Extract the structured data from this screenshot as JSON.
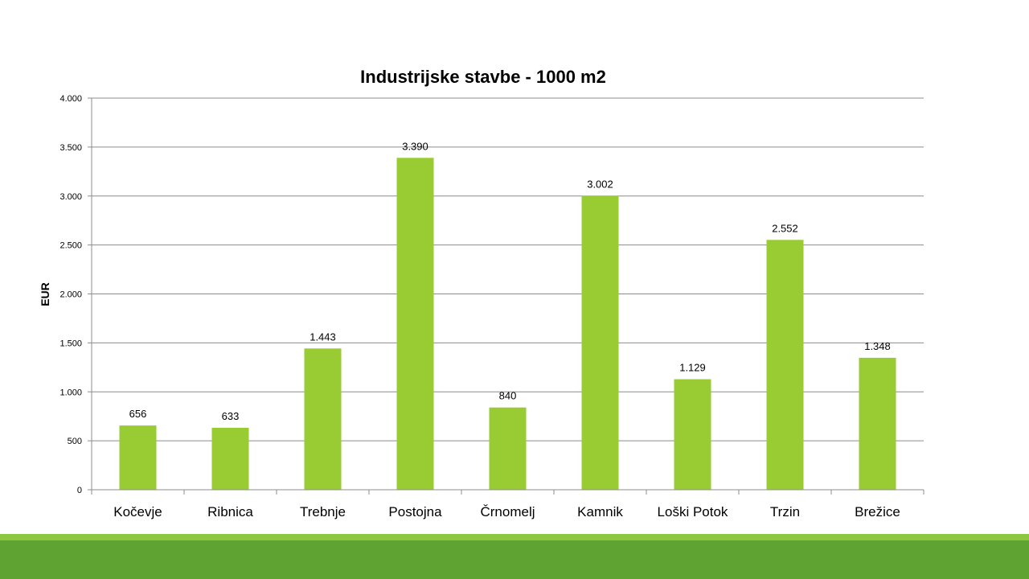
{
  "chart_data": {
    "type": "bar",
    "title": "Industrijske stavbe - 1000 m2",
    "xlabel": "",
    "ylabel": "EUR",
    "categories": [
      "Kočevje",
      "Ribnica",
      "Trebnje",
      "Postojna",
      "Črnomelj",
      "Kamnik",
      "Loški Potok",
      "Trzin",
      "Brežice"
    ],
    "values": [
      656,
      633,
      1443,
      3390,
      840,
      3002,
      1129,
      2552,
      1348
    ],
    "value_labels": [
      "656",
      "633",
      "1.443",
      "3.390",
      "840",
      "3.002",
      "1.129",
      "2.552",
      "1.348"
    ],
    "ylim": [
      0,
      4000
    ],
    "yticks": [
      0,
      500,
      1000,
      1500,
      2000,
      2500,
      3000,
      3500,
      4000
    ],
    "ytick_labels": [
      "0",
      "500",
      "1.000",
      "1.500",
      "2.000",
      "2.500",
      "3.000",
      "3.500",
      "4.000"
    ],
    "grid": true,
    "legend": "none",
    "bar_color": "#99CC33"
  },
  "colors": {
    "footer_light": "#8DC63F",
    "footer_dark": "#5FA433",
    "gridline": "#8C8C8C",
    "axis": "#8C8C8C"
  }
}
